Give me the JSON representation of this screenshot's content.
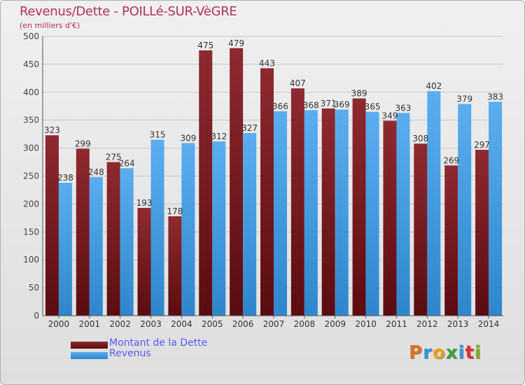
{
  "title": "Revenus/Dette - POILLé-SUR-VèGRE",
  "subtitle": "(en milliers d'€)",
  "logo": "Proxiti",
  "colors": {
    "dette": "#7a1e24",
    "revenus": "#4a9fe0",
    "title": "#b03060",
    "legend_text": "#5a5aff"
  },
  "chart_data": {
    "type": "bar",
    "categories": [
      "2000",
      "2001",
      "2002",
      "2003",
      "2004",
      "2005",
      "2006",
      "2007",
      "2008",
      "2009",
      "2010",
      "2011",
      "2012",
      "2013",
      "2014"
    ],
    "series": [
      {
        "name": "Montant de la Dette",
        "values": [
          323,
          299,
          275,
          193,
          178,
          475,
          479,
          443,
          407,
          371,
          389,
          349,
          308,
          269,
          297
        ]
      },
      {
        "name": "Revenus",
        "values": [
          238,
          248,
          264,
          315,
          309,
          312,
          327,
          366,
          368,
          369,
          365,
          363,
          402,
          379,
          383
        ]
      }
    ],
    "ylim": [
      0,
      500
    ],
    "yticks": [
      0,
      50,
      100,
      150,
      200,
      250,
      300,
      350,
      400,
      450,
      500
    ],
    "grid": true,
    "legend": "bottom-left"
  }
}
